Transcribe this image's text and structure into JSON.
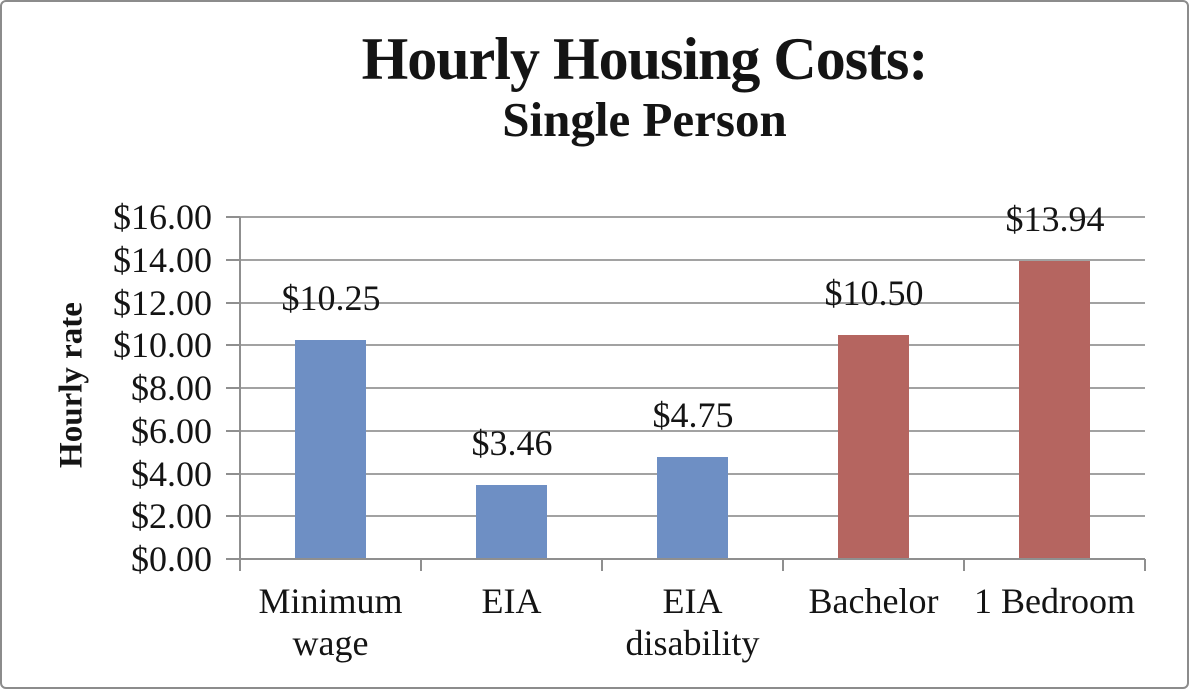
{
  "chart_data": {
    "type": "bar",
    "title": "Hourly Housing Costs:",
    "subtitle": "Single Person",
    "ylabel": "Hourly rate",
    "xlabel": "",
    "categories": [
      "Minimum wage",
      "EIA",
      "EIA disability",
      "Bachelor",
      "1 Bedroom"
    ],
    "category_label_lines": [
      [
        "Minimum",
        "wage"
      ],
      [
        "EIA"
      ],
      [
        "EIA",
        "disability"
      ],
      [
        "Bachelor"
      ],
      [
        "1 Bedroom"
      ]
    ],
    "values": [
      10.25,
      3.46,
      4.75,
      10.5,
      13.94
    ],
    "data_labels": [
      "$10.25",
      "$3.46",
      "$4.75",
      "$10.50",
      "$13.94"
    ],
    "bar_colors": [
      "#6e8fc4",
      "#6e8fc4",
      "#6e8fc4",
      "#b56560",
      "#b56560"
    ],
    "y_tick_labels": [
      "$16.00",
      "$14.00",
      "$12.00",
      "$10.00",
      "$8.00",
      "$6.00",
      "$4.00",
      "$2.00",
      "$0.00"
    ],
    "ylim": [
      0,
      16
    ],
    "y_step": 2,
    "grid": true,
    "legend": "none",
    "colors": {
      "series_blue": "#6e8fc4",
      "series_red": "#b56560",
      "gridline": "#a2a2a2",
      "axis": "#8f8f8f",
      "text": "#141414",
      "background": "#ffffff",
      "border": "#8c8c8c"
    }
  }
}
